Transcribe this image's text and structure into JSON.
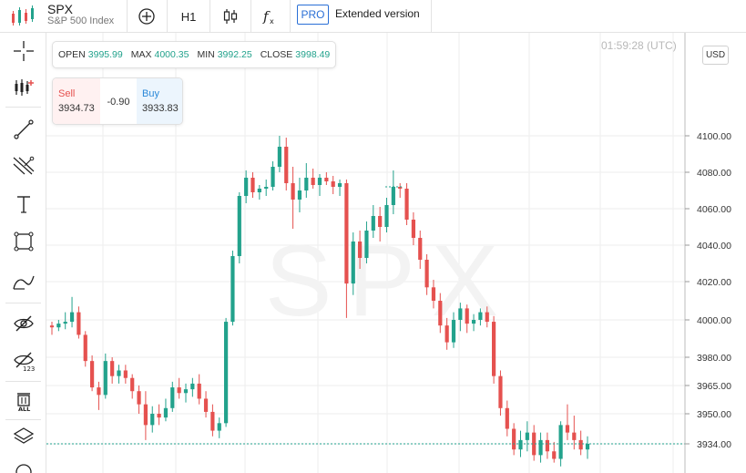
{
  "header": {
    "symbol": "SPX",
    "description": "S&P 500 Index",
    "timeframe": "H1",
    "pro_badge": "PRO",
    "extended_label": "Extended version"
  },
  "toolbar_icons": [
    "crosshair-add-icon",
    "candles-icon",
    "fx-icon"
  ],
  "left_tools": [
    "cursor-cross-icon",
    "indicators-icon",
    "trend-line-icon",
    "fib-tool-icon",
    "text-tool-icon",
    "rectangle-tool-icon",
    "brush-tool-icon",
    "hide-drawings-icon",
    "hide-values-icon",
    "delete-all-icon",
    "layers-icon"
  ],
  "ohlc": {
    "open_label": "OPEN",
    "open": "3995.99",
    "max_label": "MAX",
    "max": "4000.35",
    "min_label": "MIN",
    "min": "3992.25",
    "close_label": "CLOSE",
    "close": "3998.49"
  },
  "clock": "01:59:28 (UTC)",
  "trade": {
    "sell_label": "Sell",
    "sell_price": "3934.73",
    "spread": "-0.90",
    "buy_label": "Buy",
    "buy_price": "3933.83"
  },
  "currency": "USD",
  "watermark": "SPX",
  "colors": {
    "up": "#22a28c",
    "down": "#e5514f",
    "grid": "#eeeeee",
    "accent": "#2a6fd6"
  },
  "chart_data": {
    "type": "candlestick",
    "y_ticks": [
      "4100.00",
      "4080.00",
      "4060.00",
      "4040.00",
      "4020.00",
      "4000.00",
      "3980.00",
      "3965.00",
      "3950.00",
      "3934.00"
    ],
    "y_tick_values": [
      4100,
      4080,
      4060,
      4040,
      4020,
      4000,
      3980,
      3965,
      3950,
      3934
    ],
    "current_price": "3934.00",
    "current_price_value": 3934,
    "candles": [
      [
        3997,
        3999,
        3992,
        3996
      ],
      [
        3996,
        4000,
        3994,
        3998
      ],
      [
        3998,
        4004,
        3995,
        3999
      ],
      [
        3999,
        4012,
        3996,
        4004
      ],
      [
        4004,
        4007,
        3990,
        3992
      ],
      [
        3992,
        3994,
        3975,
        3978
      ],
      [
        3978,
        3981,
        3962,
        3964
      ],
      [
        3964,
        3967,
        3952,
        3960
      ],
      [
        3960,
        3982,
        3958,
        3978
      ],
      [
        3978,
        3980,
        3966,
        3970
      ],
      [
        3970,
        3976,
        3966,
        3973
      ],
      [
        3973,
        3976,
        3966,
        3969
      ],
      [
        3969,
        3971,
        3958,
        3962
      ],
      [
        3962,
        3965,
        3950,
        3955
      ],
      [
        3955,
        3962,
        3936,
        3944
      ],
      [
        3944,
        3954,
        3940,
        3950
      ],
      [
        3950,
        3955,
        3944,
        3948
      ],
      [
        3948,
        3958,
        3946,
        3953
      ],
      [
        3953,
        3967,
        3951,
        3964
      ],
      [
        3964,
        3969,
        3958,
        3961
      ],
      [
        3961,
        3966,
        3956,
        3963
      ],
      [
        3963,
        3969,
        3959,
        3966
      ],
      [
        3966,
        3971,
        3955,
        3958
      ],
      [
        3958,
        3962,
        3948,
        3951
      ],
      [
        3951,
        3955,
        3938,
        3941
      ],
      [
        3941,
        3948,
        3937,
        3945
      ],
      [
        3945,
        4001,
        3943,
        3999
      ],
      [
        3999,
        4037,
        3997,
        4034
      ],
      [
        4034,
        4069,
        4030,
        4067
      ],
      [
        4067,
        4081,
        4063,
        4077
      ],
      [
        4077,
        4080,
        4066,
        4069
      ],
      [
        4069,
        4073,
        4065,
        4071
      ],
      [
        4071,
        4076,
        4067,
        4072
      ],
      [
        4072,
        4086,
        4070,
        4083
      ],
      [
        4083,
        4100,
        4080,
        4094
      ],
      [
        4094,
        4099,
        4070,
        4074
      ],
      [
        4074,
        4083,
        4049,
        4065
      ],
      [
        4065,
        4077,
        4058,
        4070
      ],
      [
        4070,
        4085,
        4066,
        4077
      ],
      [
        4077,
        4082,
        4071,
        4073
      ],
      [
        4073,
        4079,
        4067,
        4077
      ],
      [
        4077,
        4080,
        4073,
        4075
      ],
      [
        4075,
        4078,
        4068,
        4072
      ],
      [
        4072,
        4076,
        4067,
        4074
      ],
      [
        4074,
        4076,
        4001,
        4019
      ],
      [
        4019,
        4047,
        4013,
        4042
      ],
      [
        4042,
        4048,
        4027,
        4033
      ],
      [
        4033,
        4053,
        4030,
        4048
      ],
      [
        4048,
        4062,
        4044,
        4056
      ],
      [
        4056,
        4061,
        4042,
        4050
      ],
      [
        4050,
        4066,
        4047,
        4062
      ],
      [
        4062,
        4081,
        4057,
        4072
      ],
      [
        4072,
        4074,
        4066,
        4071
      ],
      [
        4071,
        4074,
        4051,
        4054
      ],
      [
        4054,
        4058,
        4040,
        4044
      ],
      [
        4044,
        4048,
        4027,
        4032
      ],
      [
        4032,
        4035,
        4013,
        4017
      ],
      [
        4017,
        4021,
        4006,
        4010
      ],
      [
        4010,
        4014,
        3993,
        3997
      ],
      [
        3997,
        4001,
        3984,
        3988
      ],
      [
        3988,
        4004,
        3985,
        4000
      ],
      [
        4000,
        4009,
        3994,
        4006
      ],
      [
        4006,
        4008,
        3993,
        3998
      ],
      [
        3998,
        4003,
        3994,
        4000
      ],
      [
        4000,
        4006,
        3997,
        4004
      ],
      [
        4004,
        4007,
        3996,
        3999
      ],
      [
        3999,
        4002,
        3966,
        3970
      ],
      [
        3970,
        3973,
        3949,
        3953
      ],
      [
        3953,
        3957,
        3938,
        3942
      ],
      [
        3942,
        3945,
        3928,
        3931
      ],
      [
        3931,
        3941,
        3927,
        3936
      ],
      [
        3936,
        3946,
        3930,
        3940
      ],
      [
        3940,
        3944,
        3925,
        3928
      ],
      [
        3928,
        3940,
        3924,
        3936
      ],
      [
        3936,
        3940,
        3926,
        3930
      ],
      [
        3930,
        3935,
        3924,
        3926
      ],
      [
        3926,
        3946,
        3922,
        3944
      ],
      [
        3944,
        3955,
        3936,
        3940
      ],
      [
        3940,
        3949,
        3931,
        3936
      ],
      [
        3936,
        3941,
        3928,
        3931
      ],
      [
        3931,
        3938,
        3926,
        3934
      ]
    ]
  }
}
